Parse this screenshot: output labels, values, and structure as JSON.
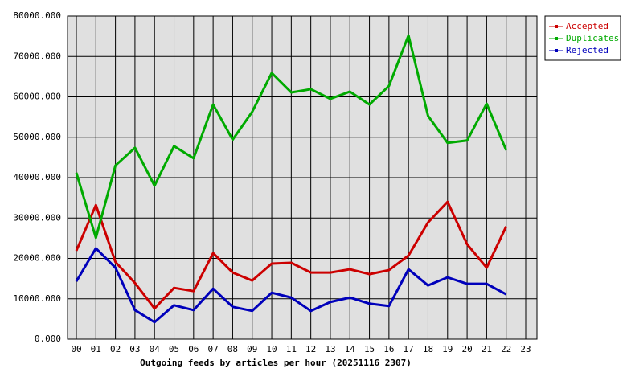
{
  "chart_data": {
    "type": "line",
    "title": "Outgoing feeds by articles per hour (20251116 2307)",
    "categories": [
      "00",
      "01",
      "02",
      "03",
      "04",
      "05",
      "06",
      "07",
      "08",
      "09",
      "10",
      "11",
      "12",
      "13",
      "14",
      "15",
      "16",
      "17",
      "18",
      "19",
      "20",
      "21",
      "22",
      "23"
    ],
    "series": [
      {
        "name": "Accepted",
        "color": "#cc0000",
        "values": [
          21900,
          33200,
          19100,
          13900,
          7600,
          12700,
          11900,
          21300,
          16500,
          14500,
          18700,
          18900,
          16500,
          16500,
          17300,
          16100,
          17100,
          20700,
          28900,
          34000,
          23500,
          17700,
          27900,
          null
        ]
      },
      {
        "name": "Duplicates",
        "color": "#00aa00",
        "values": [
          41200,
          25100,
          43000,
          47400,
          38000,
          47800,
          44800,
          58100,
          49400,
          56300,
          65900,
          61100,
          61900,
          59500,
          61300,
          58100,
          62700,
          75200,
          55300,
          48600,
          49200,
          58300,
          46800,
          null
        ]
      },
      {
        "name": "Rejected",
        "color": "#0000bb",
        "values": [
          14300,
          22500,
          17700,
          7200,
          4200,
          8400,
          7200,
          12500,
          8000,
          7000,
          11500,
          10300,
          7000,
          9200,
          10300,
          8800,
          8200,
          17300,
          13300,
          15300,
          13700,
          13700,
          11100,
          null
        ]
      }
    ],
    "ylim": [
      0,
      80000
    ],
    "yticks": [
      {
        "value": 0,
        "label": "0.000"
      },
      {
        "value": 10000,
        "label": "10000.000"
      },
      {
        "value": 20000,
        "label": "20000.000"
      },
      {
        "value": 30000,
        "label": "30000.000"
      },
      {
        "value": 40000,
        "label": "40000.000"
      },
      {
        "value": 50000,
        "label": "50000.000"
      },
      {
        "value": 60000,
        "label": "60000.000"
      },
      {
        "value": 70000,
        "label": "70000.000"
      },
      {
        "value": 80000,
        "label": "80000.000"
      }
    ],
    "grid": true,
    "legend": "top-right"
  }
}
